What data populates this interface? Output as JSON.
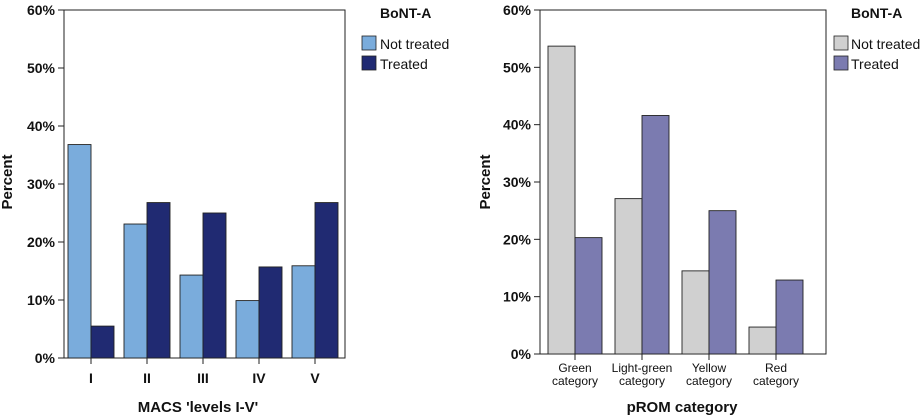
{
  "chart_data": [
    {
      "type": "bar",
      "categories": [
        "I",
        "II",
        "III",
        "IV",
        "V"
      ],
      "series": [
        {
          "name": "Not treated",
          "values": [
            36.8,
            23.1,
            14.3,
            9.9,
            15.9
          ],
          "color": "#7aacdc"
        },
        {
          "name": "Treated",
          "values": [
            5.5,
            26.8,
            25.0,
            15.7,
            26.8
          ],
          "color": "#202a72"
        }
      ],
      "title": "",
      "xlabel": "MACS 'levels I-V'",
      "ylabel": "Percent",
      "ylim": [
        0,
        60
      ],
      "yticks": [
        "0%",
        "10%",
        "20%",
        "30%",
        "40%",
        "50%",
        "60%"
      ],
      "legend_title": "BoNT-A",
      "legend_placement": "right",
      "grid": false
    },
    {
      "type": "bar",
      "categories": [
        [
          "Green",
          "category"
        ],
        [
          "Light-green",
          "category"
        ],
        [
          "Yellow",
          "category"
        ],
        [
          "Red",
          "category"
        ]
      ],
      "series": [
        {
          "name": "Not treated",
          "values": [
            53.7,
            27.1,
            14.5,
            4.7
          ],
          "color": "#d0d0d0"
        },
        {
          "name": "Treated",
          "values": [
            20.3,
            41.6,
            25.0,
            12.9
          ],
          "color": "#7b7bb0"
        }
      ],
      "title": "",
      "xlabel": "pROM category",
      "ylabel": "Percent",
      "ylim": [
        0,
        60
      ],
      "yticks": [
        "0%",
        "10%",
        "20%",
        "30%",
        "40%",
        "50%",
        "60%"
      ],
      "legend_title": "BoNT-A",
      "legend_placement": "right",
      "grid": false
    }
  ]
}
